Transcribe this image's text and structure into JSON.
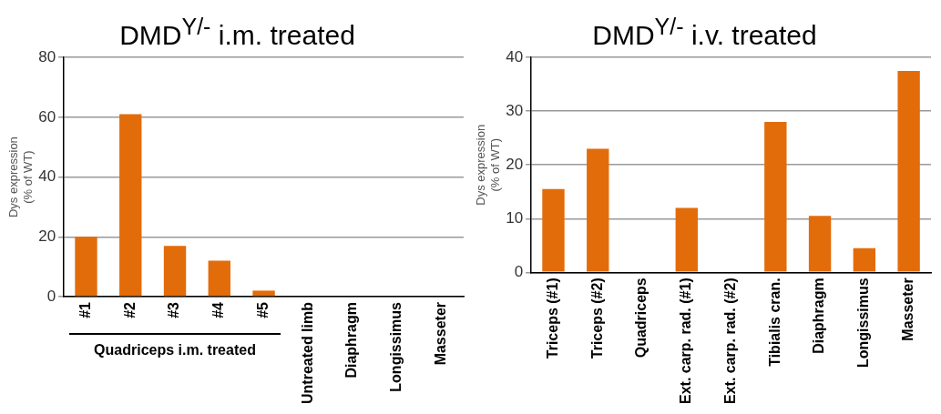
{
  "chart_data": [
    {
      "type": "bar",
      "title": "DMD$^{Y/-}$ i.m. treated",
      "ylabel": "Dys expression\n(% of WT)",
      "categories": [
        "#1",
        "#2",
        "#3",
        "#4",
        "#5",
        "Untreated limb",
        "Diaphragm",
        "Longissimus",
        "Masseter"
      ],
      "values": [
        20,
        61,
        17,
        12,
        2,
        0,
        0,
        0,
        0
      ],
      "color": "#e36c0a",
      "ylim": [
        0,
        80
      ],
      "yticks": [
        0,
        20,
        40,
        60,
        80
      ],
      "grid": "y",
      "legend": false,
      "annotations": [
        "Quadriceps i.m. treated"
      ]
    },
    {
      "type": "bar",
      "title": "DMD$^{Y/-}$ i.v. treated",
      "ylabel": "Dys expression\n(% of WT)",
      "categories": [
        "Triceps (#1)",
        "Triceps (#2)",
        "Quadriceps",
        "Ext. carp. rad. (#1)",
        "Ext. carp. rad. (#2)",
        "Tibialis cran.",
        "Diaphragm",
        "Longissimus",
        "Masseter"
      ],
      "values": [
        15.5,
        23,
        0,
        12,
        0,
        28,
        10.5,
        4.5,
        37.5
      ],
      "color": "#e36c0a",
      "ylim": [
        0,
        40
      ],
      "yticks": [
        0,
        10,
        20,
        30,
        40
      ],
      "grid": "y",
      "legend": false
    }
  ]
}
